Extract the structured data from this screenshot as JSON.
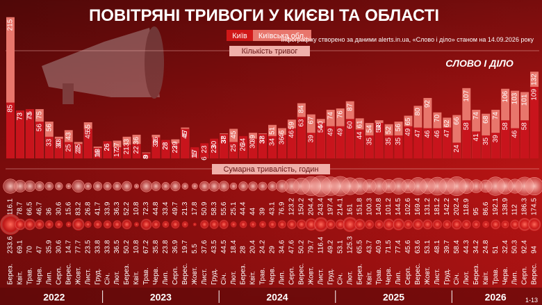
{
  "header": {
    "title": "ПОВІТРЯНІ ТРИВОГИ У КИЄВІ ТА ОБЛАСТІ",
    "source": "Інфографіку створено за даними alerts.in.ua, «Слово і діло» станом на 14.09.2026 року",
    "logo": "СЛОВО І ДІЛО",
    "page": "1-13"
  },
  "years": [
    "2022",
    "2023",
    "2024",
    "2025",
    "2026"
  ],
  "chart_data": [
    {
      "type": "bar",
      "subtitle": "Кількість тривог",
      "categories": [
        "Берез.",
        "Квіт.",
        "Трав.",
        "Черв.",
        "Лип.",
        "Серп.",
        "Верес.",
        "Жовт.",
        "Лист.",
        "Груд.",
        "Січ.",
        "Лют.",
        "Берез.",
        "Квіт.",
        "Трав.",
        "Черв.",
        "Лип.",
        "Серп.",
        "Верес.",
        "Жовт.",
        "Лист.",
        "Груд.",
        "Січ.",
        "Лют.",
        "Берез.",
        "Квіт.",
        "Трав.",
        "Черв.",
        "Лип.",
        "Серп.",
        "Верес.",
        "Жовт.",
        "Лист.",
        "Груд.",
        "Січ.",
        "Лют.",
        "Берез.",
        "Квіт.",
        "Трав.",
        "Черв.",
        "Лип.",
        "Серп.",
        "Верес.",
        "Жовт.",
        "Лист.",
        "Груд.",
        "Січ.",
        "Лют.",
        "Берез.",
        "Квіт.",
        "Трав.",
        "Черв.",
        "Лип.",
        "Серп.",
        "Верес."
      ],
      "ylim": [
        0,
        220
      ],
      "series": [
        {
          "name": "Київська обл.",
          "color": "#e8766c",
          "values": [
            215,
            73,
            73,
            75,
            56,
            33,
            43,
            25,
            55,
            18,
            26,
            27,
            33,
            36,
            9,
            36,
            28,
            29,
            47,
            15,
            6,
            23,
            38,
            45,
            26,
            39,
            38,
            51,
            46,
            59,
            84,
            67,
            60,
            74,
            76,
            87,
            61,
            54,
            58,
            52,
            56,
            65,
            80,
            92,
            70,
            62,
            66,
            107,
            74,
            68,
            74,
            106,
            103,
            101,
            132
          ]
        },
        {
          "name": "Київ",
          "color": "#c8141c",
          "values": [
            85,
            73,
            75,
            56,
            33,
            30,
            25,
            22,
            45,
            16,
            26,
            17,
            21,
            22,
            8,
            32,
            28,
            23,
            45,
            17,
            23,
            30,
            37,
            25,
            34,
            30,
            37,
            34,
            36,
            46,
            63,
            39,
            54,
            49,
            49,
            60,
            44,
            35,
            54,
            35,
            35,
            49,
            47,
            46,
            46,
            47,
            24,
            58,
            41,
            35,
            39,
            58,
            46,
            58,
            109
          ]
        }
      ]
    },
    {
      "type": "bubble",
      "subtitle": "Сумарна тривалість, годин",
      "series": [
        {
          "name": "Київська обл.",
          "color": "#f2908a",
          "values": [
            116.1,
            78.7,
            66.5,
            46.7,
            36,
            30.6,
            15.6,
            83.2,
            26.8,
            41.7,
            33.9,
            36.3,
            52.2,
            10.8,
            72.3,
            44.8,
            33.4,
            49.7,
            21.3,
            17.8,
            50.9,
            58.3,
            55.6,
            25.1,
            44.4,
            44,
            39,
            43.1,
            76.9,
            123.2,
            150.2,
            204.4,
            243.4,
            197.4,
            214.1,
            161,
            151.8,
            100.3,
            140.8,
            101.2,
            144.5,
            102.6,
            169.4,
            131.2,
            181.2,
            142.2,
            202.4,
            118.9,
            95,
            86.6,
            192.1,
            138.9,
            112,
            186.3,
            174.5
          ]
        },
        {
          "name": "Київ",
          "color": "#d01818",
          "values": [
            233.6,
            69.1,
            70,
            47,
            35.9,
            30.6,
            14.7,
            77.7,
            23.5,
            33.8,
            33.8,
            36.5,
            50.2,
            10.8,
            67.2,
            35.8,
            23.8,
            36.9,
            19.7,
            5.5,
            37.6,
            43.5,
            44.5,
            18.4,
            28,
            20.4,
            24.2,
            29,
            34.6,
            47.6,
            50.2,
            79.7,
            116.4,
            49.2,
            53.1,
            125.3,
            65.5,
            43.7,
            40.9,
            71.5,
            77.4,
            45.6,
            63.6,
            53.1,
            48.1,
            39.7,
            58.4,
            44.3,
            34.2,
            24.8,
            51,
            32.4,
            50.3,
            92.4,
            94
          ]
        }
      ]
    }
  ]
}
